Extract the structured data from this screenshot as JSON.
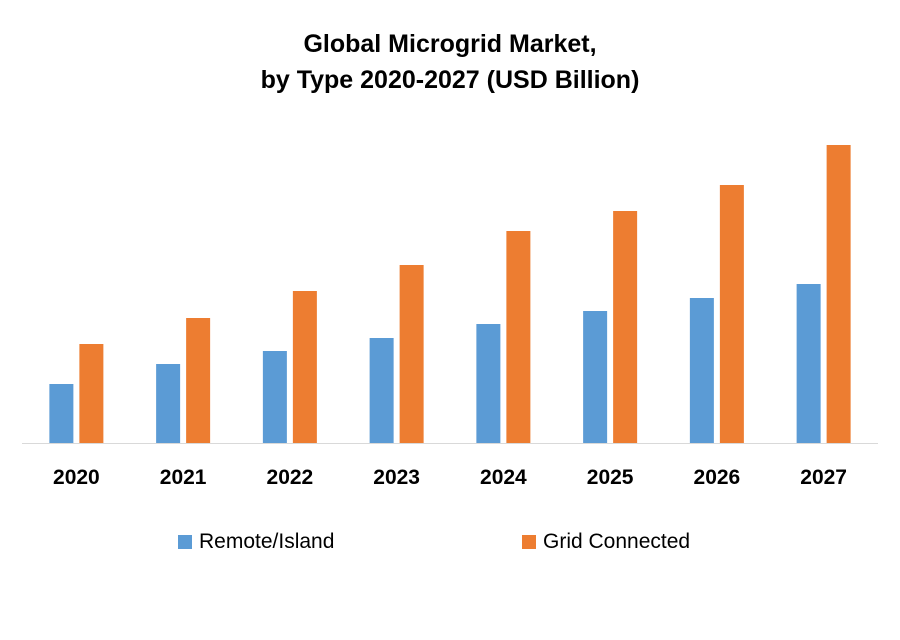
{
  "chart_data": {
    "type": "bar",
    "title": "Global Microgrid Market, by Type 2020-2027 (USD Billion)",
    "title_lines": [
      "Global Microgrid Market,",
      "by Type 2020-2027 (USD Billion)"
    ],
    "xlabel": "",
    "ylabel": "",
    "categories": [
      "2020",
      "2021",
      "2022",
      "2023",
      "2024",
      "2025",
      "2026",
      "2027"
    ],
    "series": [
      {
        "name": "Remote/Island",
        "color": "#5B9BD5",
        "values": [
          5.9,
          7.9,
          9.2,
          10.5,
          11.9,
          13.2,
          14.5,
          15.9
        ]
      },
      {
        "name": "Grid Connected",
        "color": "#ED7D31",
        "values": [
          9.9,
          12.5,
          15.2,
          17.8,
          21.2,
          23.2,
          25.8,
          29.8
        ]
      }
    ],
    "ylim": [
      0,
      30
    ],
    "y_axis_visible": false,
    "grid": false,
    "legend": "bottom"
  }
}
